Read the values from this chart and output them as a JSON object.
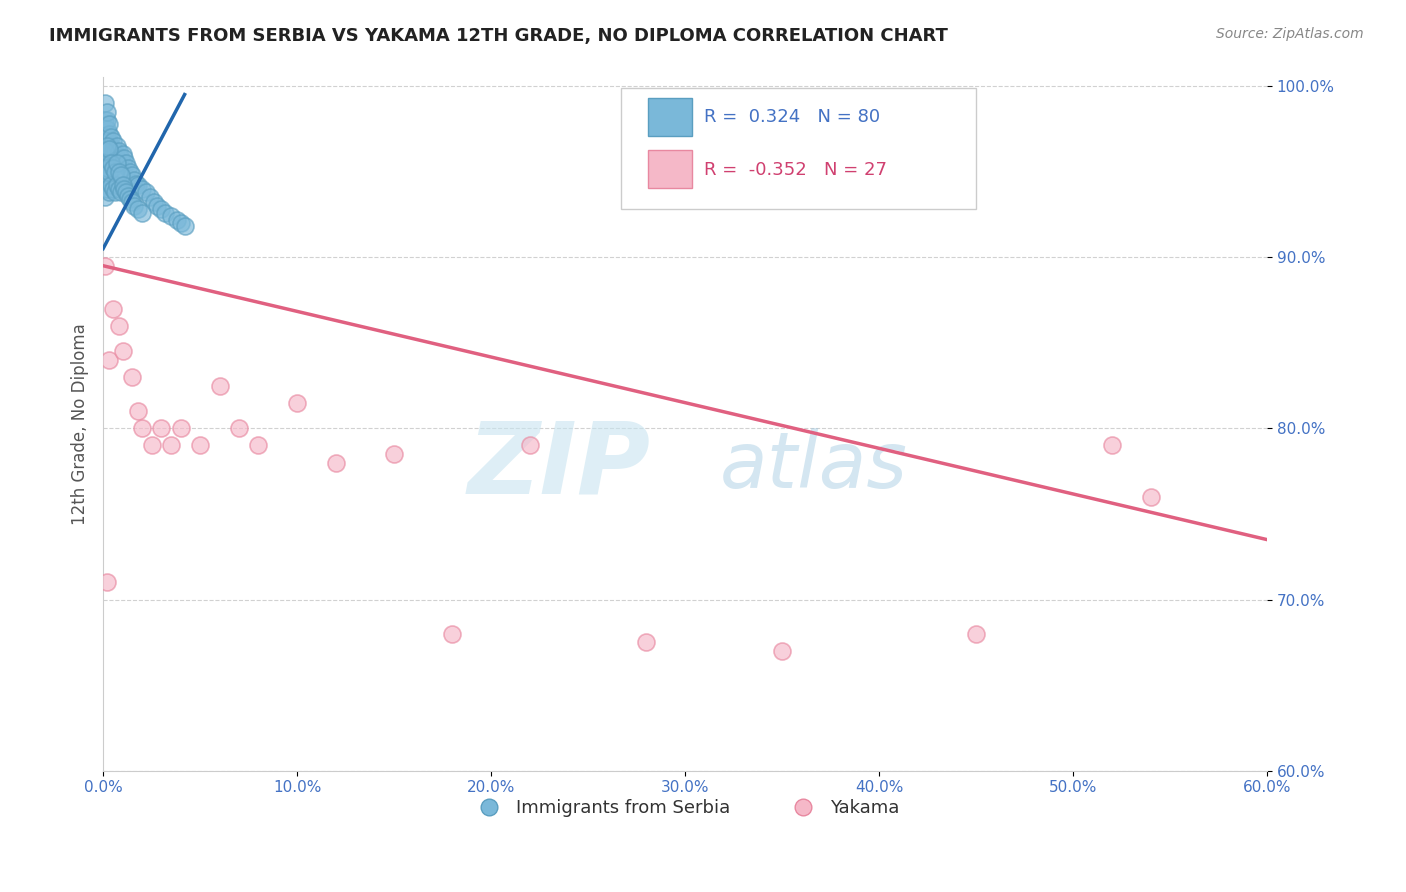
{
  "title": "IMMIGRANTS FROM SERBIA VS YAKAMA 12TH GRADE, NO DIPLOMA CORRELATION CHART",
  "source": "Source: ZipAtlas.com",
  "xlabel_blue": "Immigrants from Serbia",
  "xlabel_pink": "Yakama",
  "ylabel": "12th Grade, No Diploma",
  "legend_blue_r": "0.324",
  "legend_blue_n": "80",
  "legend_pink_r": "-0.352",
  "legend_pink_n": "27",
  "x_min": 0.0,
  "x_max": 0.6,
  "y_min": 0.6,
  "y_max": 1.005,
  "y_ticks": [
    0.6,
    0.7,
    0.8,
    0.9,
    1.0
  ],
  "x_ticks": [
    0.0,
    0.1,
    0.2,
    0.3,
    0.4,
    0.5,
    0.6
  ],
  "blue_color": "#7ab8d9",
  "blue_edge_color": "#5a9ec0",
  "pink_color": "#f5b8c8",
  "pink_edge_color": "#e888a0",
  "blue_line_color": "#2166ac",
  "pink_line_color": "#e06080",
  "watermark_color": "#c8e4f0",
  "background_color": "#ffffff",
  "blue_scatter_x": [
    0.001,
    0.001,
    0.001,
    0.001,
    0.001,
    0.002,
    0.002,
    0.002,
    0.002,
    0.002,
    0.002,
    0.003,
    0.003,
    0.003,
    0.003,
    0.003,
    0.004,
    0.004,
    0.004,
    0.005,
    0.005,
    0.005,
    0.006,
    0.006,
    0.007,
    0.007,
    0.008,
    0.008,
    0.009,
    0.01,
    0.01,
    0.011,
    0.012,
    0.013,
    0.014,
    0.015,
    0.016,
    0.017,
    0.018,
    0.02,
    0.022,
    0.024,
    0.026,
    0.028,
    0.03,
    0.032,
    0.035,
    0.038,
    0.04,
    0.042,
    0.001,
    0.001,
    0.001,
    0.002,
    0.002,
    0.002,
    0.003,
    0.003,
    0.003,
    0.004,
    0.004,
    0.005,
    0.005,
    0.006,
    0.006,
    0.007,
    0.007,
    0.008,
    0.008,
    0.009,
    0.009,
    0.01,
    0.011,
    0.012,
    0.013,
    0.014,
    0.015,
    0.016,
    0.018,
    0.02
  ],
  "blue_scatter_y": [
    0.945,
    0.96,
    0.97,
    0.98,
    0.99,
    0.95,
    0.96,
    0.97,
    0.975,
    0.98,
    0.985,
    0.955,
    0.962,
    0.968,
    0.972,
    0.978,
    0.96,
    0.965,
    0.97,
    0.958,
    0.963,
    0.968,
    0.955,
    0.962,
    0.958,
    0.965,
    0.955,
    0.962,
    0.958,
    0.955,
    0.96,
    0.958,
    0.955,
    0.952,
    0.95,
    0.948,
    0.945,
    0.943,
    0.942,
    0.94,
    0.938,
    0.935,
    0.932,
    0.93,
    0.928,
    0.926,
    0.924,
    0.922,
    0.92,
    0.918,
    0.935,
    0.948,
    0.962,
    0.94,
    0.952,
    0.965,
    0.938,
    0.95,
    0.963,
    0.942,
    0.955,
    0.94,
    0.952,
    0.938,
    0.95,
    0.942,
    0.955,
    0.94,
    0.95,
    0.938,
    0.948,
    0.942,
    0.94,
    0.938,
    0.936,
    0.934,
    0.932,
    0.93,
    0.928,
    0.926
  ],
  "pink_scatter_x": [
    0.001,
    0.002,
    0.003,
    0.005,
    0.008,
    0.01,
    0.015,
    0.018,
    0.02,
    0.025,
    0.03,
    0.035,
    0.04,
    0.05,
    0.06,
    0.07,
    0.08,
    0.1,
    0.12,
    0.15,
    0.18,
    0.22,
    0.28,
    0.35,
    0.45,
    0.52,
    0.54
  ],
  "pink_scatter_y": [
    0.895,
    0.71,
    0.84,
    0.87,
    0.86,
    0.845,
    0.83,
    0.81,
    0.8,
    0.79,
    0.8,
    0.79,
    0.8,
    0.79,
    0.825,
    0.8,
    0.79,
    0.815,
    0.78,
    0.785,
    0.68,
    0.79,
    0.675,
    0.67,
    0.68,
    0.79,
    0.76
  ],
  "blue_trendline_x": [
    0.0,
    0.042
  ],
  "blue_trendline_y": [
    0.905,
    0.995
  ],
  "pink_trendline_x": [
    0.0,
    0.6
  ],
  "pink_trendline_y": [
    0.895,
    0.735
  ]
}
